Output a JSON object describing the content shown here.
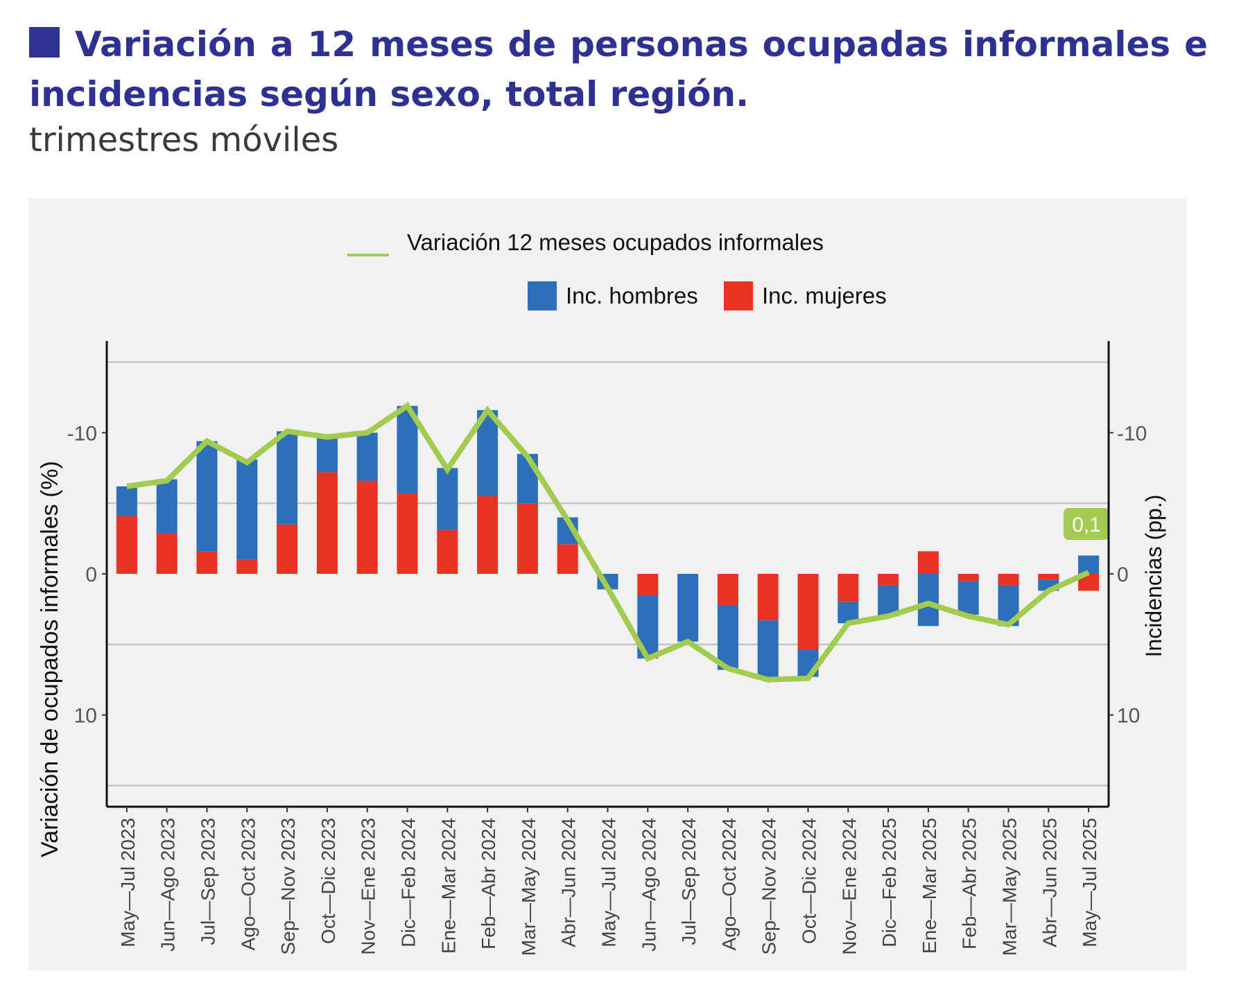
{
  "header": {
    "title": "Variación a 12 meses de personas ocupadas informales e incidencias según sexo, total región.",
    "subtitle": "trimestres móviles",
    "title_color": "#2e3192"
  },
  "chart_data": {
    "type": "bar",
    "stacked": true,
    "title": "Variación a 12 meses de personas ocupadas informales e incidencias según sexo, total región.",
    "subtitle": "trimestres móviles",
    "xlabel": "",
    "ylabel": "Variación de ocupados informales (%)",
    "ylabel_right": "Incidencias (pp.)",
    "ylim": [
      -16.5,
      16.5
    ],
    "yticks": [
      -10,
      0,
      10
    ],
    "gridlines": [
      -15,
      -5,
      5,
      15
    ],
    "grid": true,
    "legend_position": "top",
    "categories": [
      "May—Jul 2023",
      "Jun—Ago 2023",
      "Jul—Sep 2023",
      "Ago—Oct 2023",
      "Sep—Nov 2023",
      "Oct—Dic 2023",
      "Nov—Ene 2023",
      "Dic—Feb 2024",
      "Ene—Mar 2024",
      "Feb—Abr 2024",
      "Mar—May 2024",
      "Abr—Jun 2024",
      "May—Jul 2024",
      "Jun—Ago 2024",
      "Jul—Sep 2024",
      "Ago—Oct 2024",
      "Sep—Nov 2024",
      "Oct—Dic 2024",
      "Nov—Ene 2024",
      "Dic—Feb 2025",
      "Ene—Mar 2025",
      "Feb—Abr 2025",
      "Mar—May 2025",
      "Abr—Jun 2025",
      "May—Jul 2025"
    ],
    "series": [
      {
        "name": "Inc. mujeres",
        "kind": "bar",
        "color": "#e83323",
        "values": [
          4.1,
          2.9,
          1.6,
          1.0,
          3.5,
          7.2,
          6.6,
          5.7,
          3.1,
          5.5,
          5.0,
          2.1,
          0.0,
          -1.5,
          0.0,
          -2.2,
          -3.3,
          -5.4,
          -2.0,
          -0.8,
          1.6,
          -0.5,
          -0.8,
          -0.4,
          -1.2
        ]
      },
      {
        "name": "Inc. hombres",
        "kind": "bar",
        "color": "#2c70ba",
        "values": [
          2.1,
          3.8,
          7.8,
          7.1,
          6.6,
          2.6,
          3.4,
          6.2,
          4.4,
          6.1,
          3.5,
          1.9,
          -1.1,
          -4.5,
          -4.8,
          -4.6,
          -4.0,
          -1.9,
          -1.5,
          -2.2,
          -3.7,
          -2.4,
          -2.9,
          -0.8,
          1.3
        ]
      },
      {
        "name": "Variación 12 meses ocupados informales",
        "kind": "line",
        "color": "#a2cb4f",
        "values": [
          6.2,
          6.6,
          9.4,
          7.9,
          10.1,
          9.7,
          10.0,
          11.9,
          7.4,
          11.6,
          8.3,
          3.8,
          -1.0,
          -6.0,
          -4.8,
          -6.7,
          -7.5,
          -7.4,
          -3.5,
          -3.0,
          -2.1,
          -3.0,
          -3.6,
          -1.2,
          0.1
        ]
      }
    ],
    "annotations": [
      {
        "text": "0,1",
        "category": "May—Jul 2025",
        "series": "Variación 12 meses ocupados informales"
      }
    ]
  },
  "legend": {
    "line_label": "Variación 12 meses ocupados informales",
    "bar_labels": [
      "Inc. hombres",
      "Inc. mujeres"
    ]
  },
  "axes": {
    "left_ticks": [
      "10",
      "0",
      "-10"
    ],
    "right_ticks": [
      "10",
      "0",
      "-10"
    ],
    "left_title": "Variación de ocupados informales (%)",
    "right_title": "Incidencias (pp.)"
  }
}
